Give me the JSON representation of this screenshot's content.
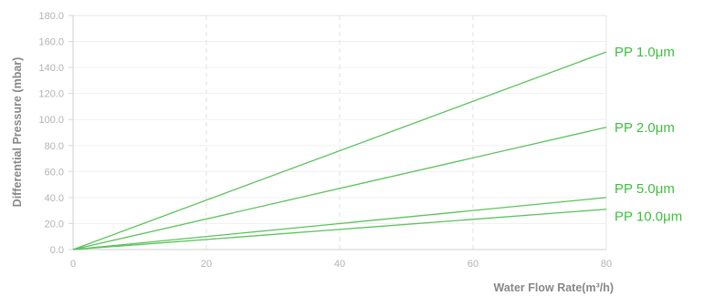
{
  "chart_data": {
    "type": "line",
    "xlabel": "Water Flow Rate(m³/h)",
    "ylabel": "Differential Pressure (mbar)",
    "xlim": [
      0,
      80
    ],
    "ylim": [
      0,
      180
    ],
    "x_ticks": [
      "0",
      "20",
      "40",
      "60",
      "80"
    ],
    "y_ticks": [
      "0.0",
      "20.0",
      "40.0",
      "60.0",
      "80.0",
      "100.0",
      "120.0",
      "140.0",
      "160.0",
      "180.0"
    ],
    "grid": "vertical dashed",
    "legend": "direct labels at right end of lines",
    "line_color": "#5cc25c",
    "label_color": "#3fbf3f",
    "series": [
      {
        "name": "PP 1.0μm",
        "x": [
          0,
          80
        ],
        "y": [
          0,
          152
        ]
      },
      {
        "name": "PP 2.0μm",
        "x": [
          0,
          80
        ],
        "y": [
          0,
          94
        ]
      },
      {
        "name": "PP 5.0μm",
        "x": [
          0,
          80
        ],
        "y": [
          0,
          40
        ]
      },
      {
        "name": "PP 10.0μm",
        "x": [
          0,
          80
        ],
        "y": [
          0,
          31
        ]
      }
    ]
  }
}
